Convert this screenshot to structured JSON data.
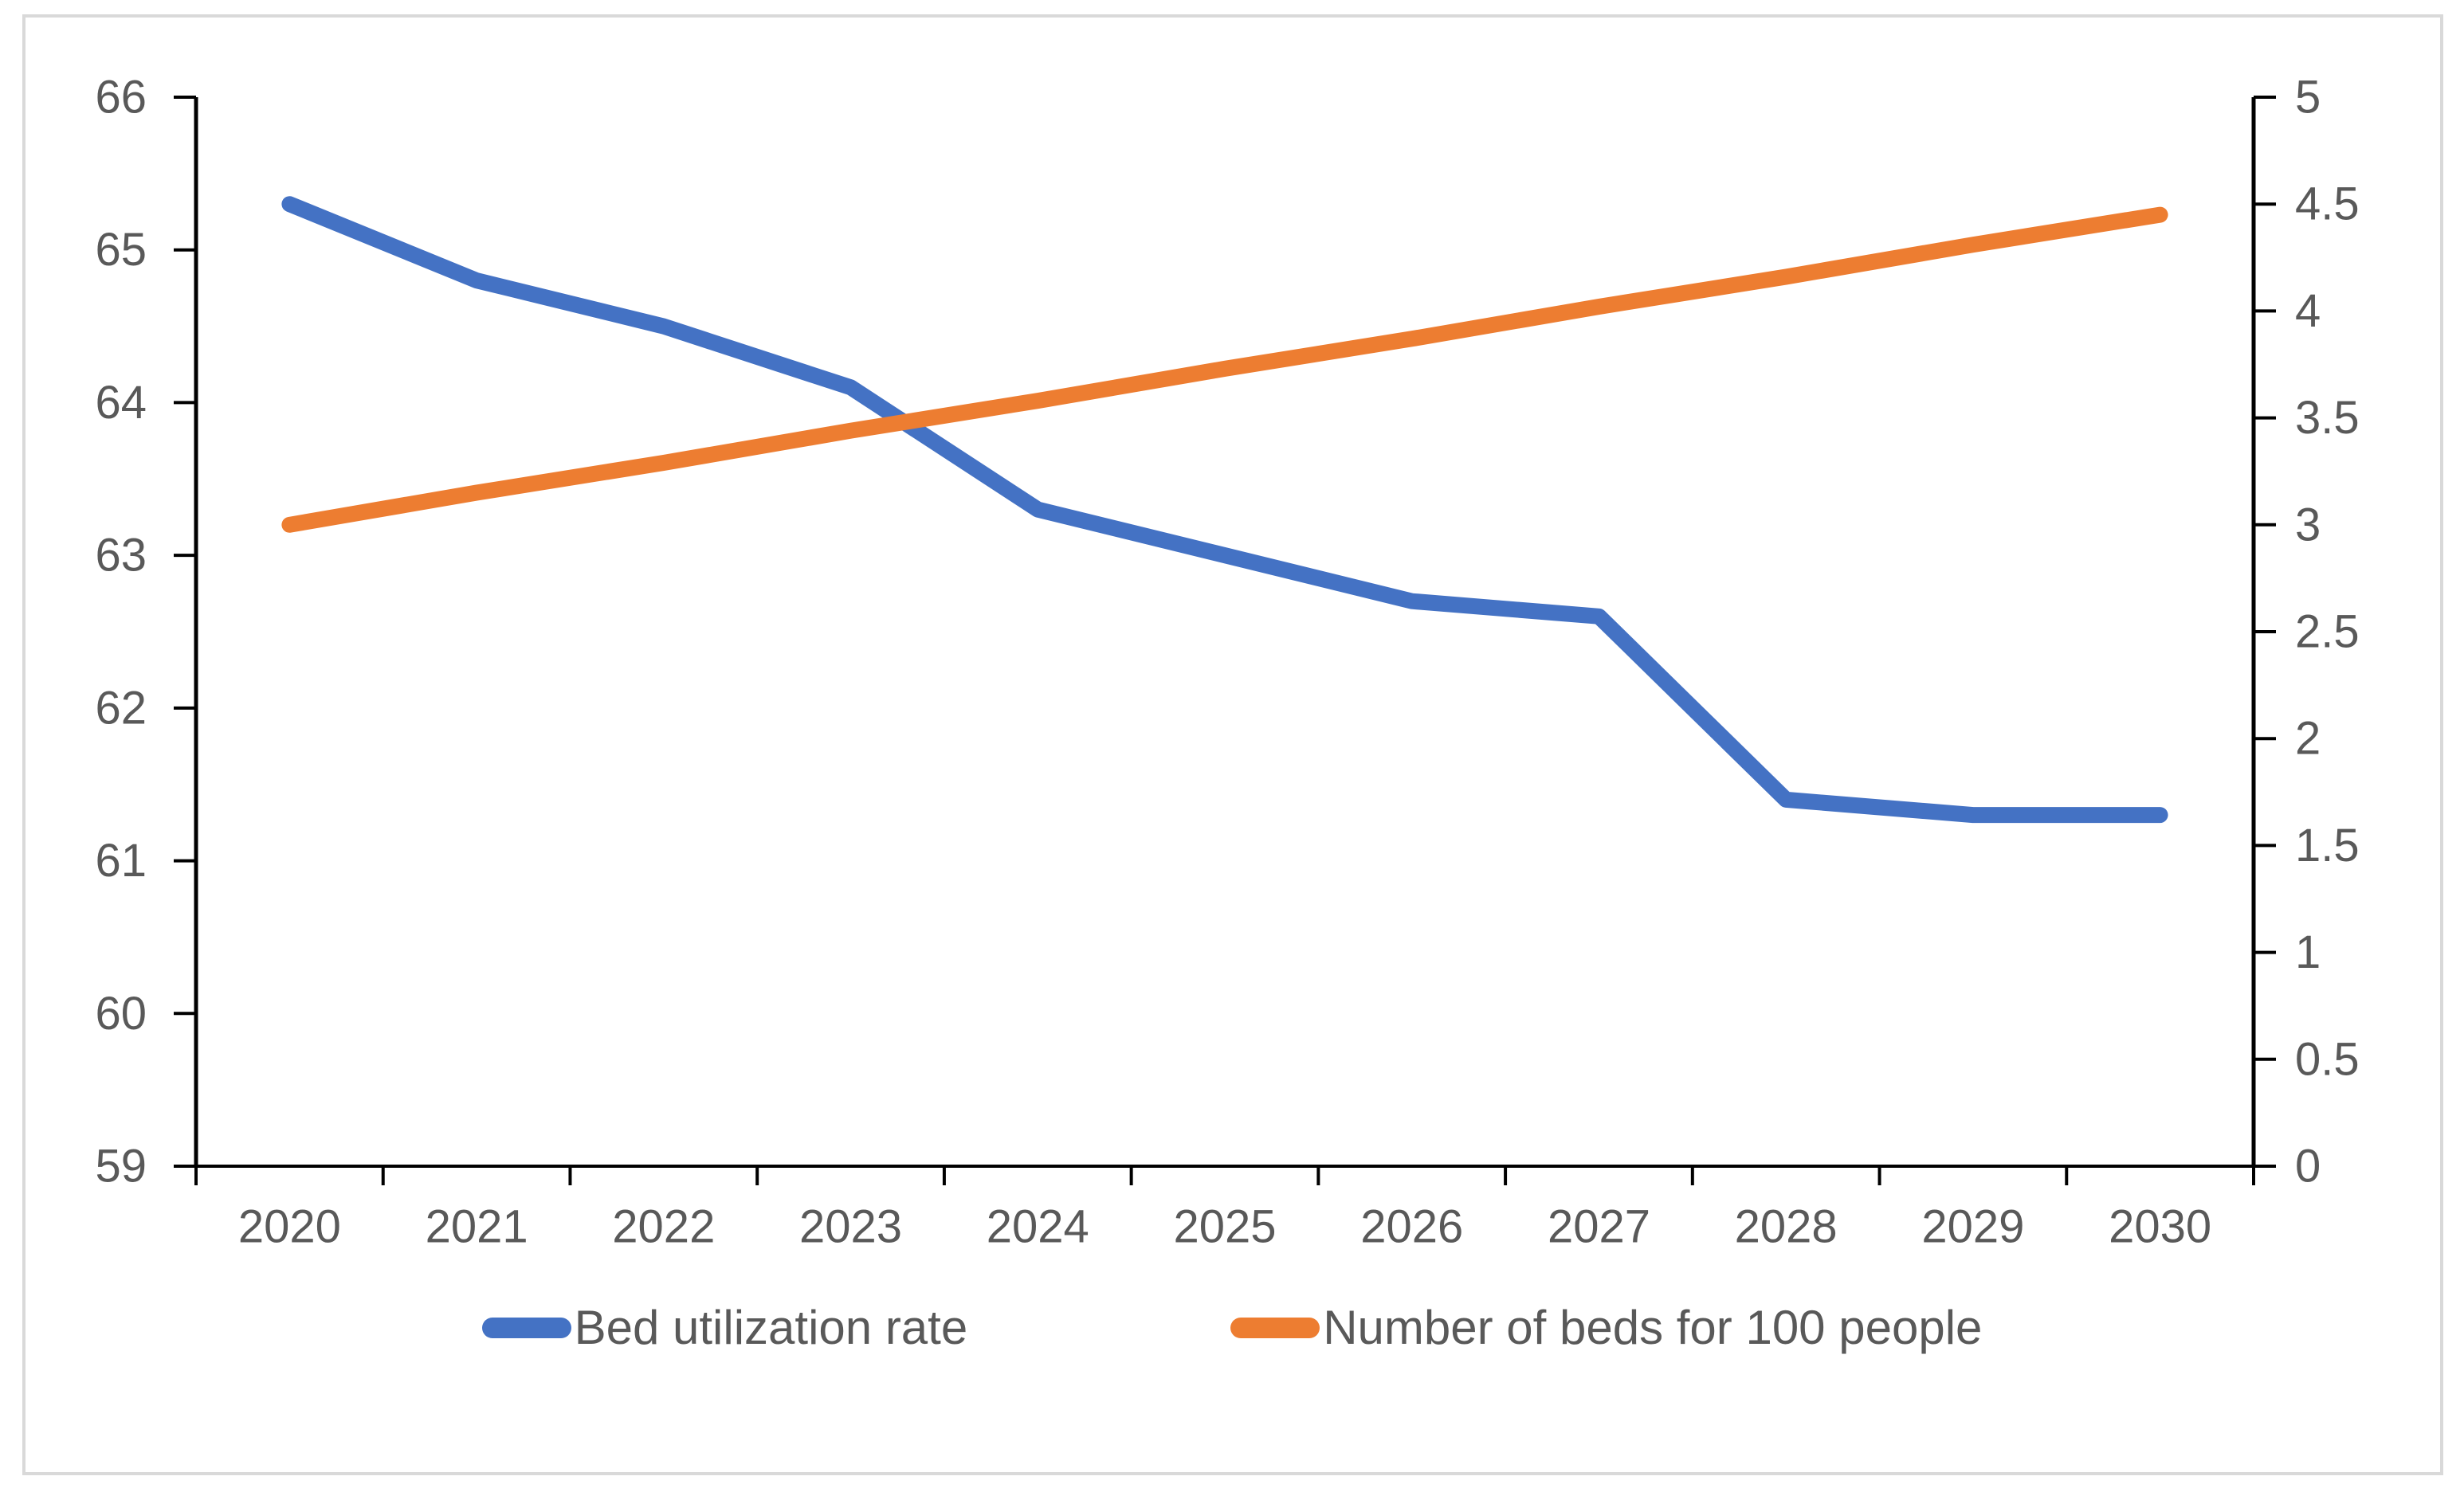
{
  "window": {
    "background_color": "#ffffff",
    "border_color": "#d9d9d9"
  },
  "chart_data": {
    "type": "line",
    "title": "",
    "xlabel": "",
    "ylabel": "",
    "grid": false,
    "legend_position": "bottom",
    "text_color": "#595959",
    "axis_color": "#000000",
    "categories": [
      "2020",
      "2021",
      "2022",
      "2023",
      "2024",
      "2025",
      "2026",
      "2027",
      "2028",
      "2029",
      "2030"
    ],
    "series": [
      {
        "name": "Bed utilization rate",
        "axis": "left",
        "color": "#4472C4",
        "values": [
          65.3,
          64.8,
          64.5,
          64.1,
          63.3,
          63.0,
          62.7,
          62.6,
          61.4,
          61.3,
          61.3
        ]
      },
      {
        "name": "Number of beds for 100 people",
        "axis": "right",
        "color": "#ED7D31",
        "values": [
          3.0,
          3.15,
          3.29,
          3.44,
          3.58,
          3.73,
          3.87,
          4.02,
          4.16,
          4.31,
          4.45
        ]
      }
    ],
    "left_axis": {
      "min": 59,
      "max": 66,
      "tick_step": 1,
      "tick_labels": [
        "66",
        "65",
        "64",
        "63",
        "62",
        "61",
        "60",
        "59"
      ]
    },
    "right_axis": {
      "min": 0,
      "max": 5,
      "tick_step": 0.5,
      "tick_labels": [
        "5",
        "4.5",
        "4",
        "3.5",
        "3",
        "2.5",
        "2",
        "1.5",
        "1",
        "0.5",
        "0"
      ]
    }
  }
}
